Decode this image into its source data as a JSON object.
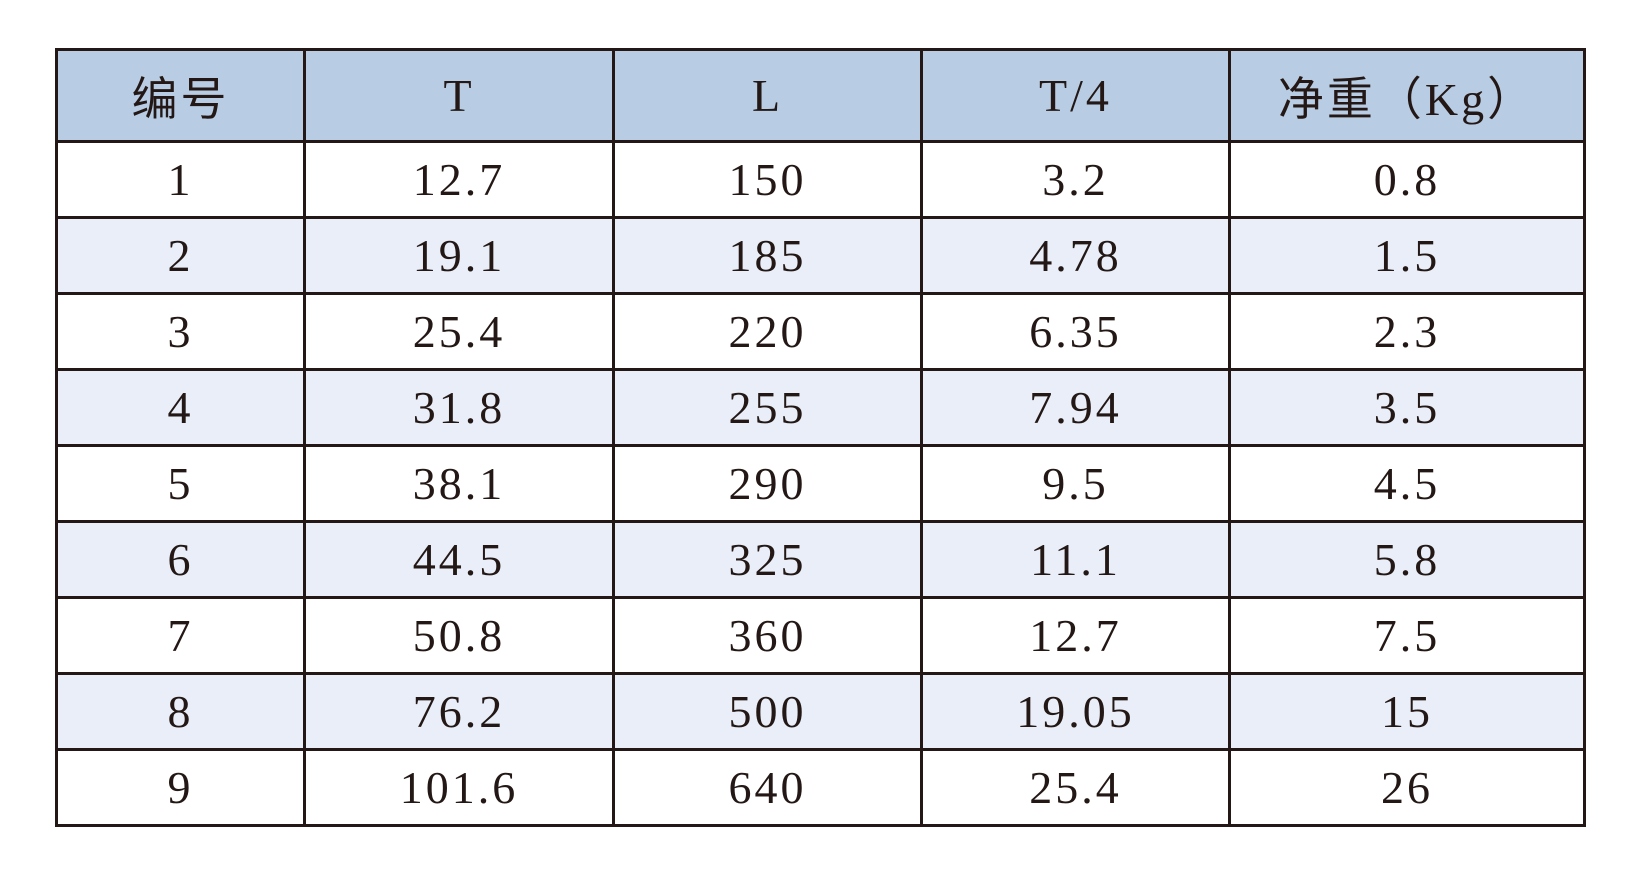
{
  "table": {
    "header": [
      "编号",
      "T",
      "L",
      "T/4",
      "净重（Kg）"
    ],
    "rows": [
      [
        "1",
        "12.7",
        "150",
        "3.2",
        "0.8"
      ],
      [
        "2",
        "19.1",
        "185",
        "4.78",
        "1.5"
      ],
      [
        "3",
        "25.4",
        "220",
        "6.35",
        "2.3"
      ],
      [
        "4",
        "31.8",
        "255",
        "7.94",
        "3.5"
      ],
      [
        "5",
        "38.1",
        "290",
        "9.5",
        "4.5"
      ],
      [
        "6",
        "44.5",
        "325",
        "11.1",
        "5.8"
      ],
      [
        "7",
        "50.8",
        "360",
        "12.7",
        "7.5"
      ],
      [
        "8",
        "76.2",
        "500",
        "19.05",
        "15"
      ],
      [
        "9",
        "101.6",
        "640",
        "25.4",
        "26"
      ]
    ]
  }
}
